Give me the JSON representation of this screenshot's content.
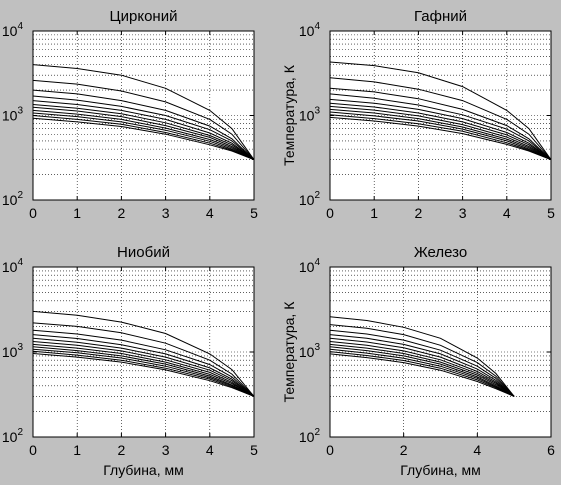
{
  "figure": {
    "background": "#c0c0c0",
    "axes_background": "#ffffff",
    "line_color": "#000000"
  },
  "chart_data": [
    {
      "type": "line",
      "title": "Цирконий",
      "xlabel": "",
      "ylabel": "",
      "xlim": [
        0,
        5
      ],
      "ylim": [
        100,
        10000
      ],
      "yscale": "log",
      "xticks": [
        "0",
        "1",
        "2",
        "3",
        "4",
        "5"
      ],
      "grid": "dotted",
      "series": [
        {
          "x": [
            0,
            1,
            2,
            3,
            4,
            4.5,
            5
          ],
          "y": [
            4000,
            3600,
            3000,
            2100,
            1150,
            700,
            300
          ]
        },
        {
          "x": [
            0,
            1,
            2,
            3,
            4,
            4.5,
            5
          ],
          "y": [
            2600,
            2350,
            1950,
            1450,
            900,
            600,
            300
          ]
        },
        {
          "x": [
            0,
            1,
            2,
            3,
            4,
            4.5,
            5
          ],
          "y": [
            2000,
            1800,
            1500,
            1150,
            750,
            530,
            300
          ]
        },
        {
          "x": [
            0,
            1,
            2,
            3,
            4,
            4.5,
            5
          ],
          "y": [
            1700,
            1520,
            1280,
            1000,
            680,
            500,
            300
          ]
        },
        {
          "x": [
            0,
            1,
            2,
            3,
            4,
            4.5,
            5
          ],
          "y": [
            1500,
            1350,
            1150,
            900,
            620,
            470,
            300
          ]
        },
        {
          "x": [
            0,
            1,
            2,
            3,
            4,
            4.5,
            5
          ],
          "y": [
            1350,
            1220,
            1050,
            820,
            580,
            450,
            300
          ]
        },
        {
          "x": [
            0,
            1,
            2,
            3,
            4,
            4.5,
            5
          ],
          "y": [
            1250,
            1130,
            970,
            760,
            550,
            430,
            300
          ]
        },
        {
          "x": [
            0,
            1,
            2,
            3,
            4,
            4.5,
            5
          ],
          "y": [
            1150,
            1040,
            900,
            710,
            520,
            415,
            300
          ]
        },
        {
          "x": [
            0,
            1,
            2,
            3,
            4,
            4.5,
            5
          ],
          "y": [
            1070,
            970,
            840,
            670,
            495,
            400,
            300
          ]
        },
        {
          "x": [
            0,
            1,
            2,
            3,
            4,
            4.5,
            5
          ],
          "y": [
            1000,
            900,
            790,
            630,
            470,
            390,
            300
          ]
        },
        {
          "x": [
            0,
            1,
            2,
            3,
            4,
            4.5,
            5
          ],
          "y": [
            930,
            840,
            740,
            600,
            450,
            380,
            300
          ]
        }
      ]
    },
    {
      "type": "line",
      "title": "Гафний",
      "xlabel": "",
      "ylabel": "Температура, К",
      "xlim": [
        0,
        5
      ],
      "ylim": [
        100,
        10000
      ],
      "yscale": "log",
      "xticks": [
        "0",
        "1",
        "2",
        "3",
        "4",
        "5"
      ],
      "grid": "dotted",
      "series": [
        {
          "x": [
            0,
            1,
            2,
            3,
            4,
            4.5,
            5
          ],
          "y": [
            4300,
            3900,
            3200,
            2200,
            1150,
            700,
            300
          ]
        },
        {
          "x": [
            0,
            1,
            2,
            3,
            4,
            4.5,
            5
          ],
          "y": [
            2800,
            2500,
            2050,
            1500,
            900,
            600,
            300
          ]
        },
        {
          "x": [
            0,
            1,
            2,
            3,
            4,
            4.5,
            5
          ],
          "y": [
            2100,
            1900,
            1580,
            1180,
            760,
            530,
            300
          ]
        },
        {
          "x": [
            0,
            1,
            2,
            3,
            4,
            4.5,
            5
          ],
          "y": [
            1800,
            1600,
            1330,
            1020,
            690,
            500,
            300
          ]
        },
        {
          "x": [
            0,
            1,
            2,
            3,
            4,
            4.5,
            5
          ],
          "y": [
            1550,
            1400,
            1180,
            920,
            630,
            470,
            300
          ]
        },
        {
          "x": [
            0,
            1,
            2,
            3,
            4,
            4.5,
            5
          ],
          "y": [
            1400,
            1260,
            1070,
            840,
            590,
            450,
            300
          ]
        },
        {
          "x": [
            0,
            1,
            2,
            3,
            4,
            4.5,
            5
          ],
          "y": [
            1280,
            1160,
            990,
            780,
            555,
            430,
            300
          ]
        },
        {
          "x": [
            0,
            1,
            2,
            3,
            4,
            4.5,
            5
          ],
          "y": [
            1180,
            1070,
            920,
            730,
            525,
            415,
            300
          ]
        },
        {
          "x": [
            0,
            1,
            2,
            3,
            4,
            4.5,
            5
          ],
          "y": [
            1100,
            990,
            860,
            690,
            500,
            400,
            300
          ]
        },
        {
          "x": [
            0,
            1,
            2,
            3,
            4,
            4.5,
            5
          ],
          "y": [
            1020,
            920,
            800,
            650,
            475,
            390,
            300
          ]
        },
        {
          "x": [
            0,
            1,
            2,
            3,
            4,
            4.5,
            5
          ],
          "y": [
            950,
            860,
            750,
            610,
            455,
            380,
            300
          ]
        }
      ]
    },
    {
      "type": "line",
      "title": "Ниобий",
      "xlabel": "Глубина, мм",
      "ylabel": "",
      "xlim": [
        0,
        5
      ],
      "ylim": [
        100,
        10000
      ],
      "yscale": "log",
      "xticks": [
        "0",
        "1",
        "2",
        "3",
        "4",
        "5"
      ],
      "grid": "dotted",
      "series": [
        {
          "x": [
            0,
            1,
            2,
            3,
            4,
            4.5,
            5
          ],
          "y": [
            3000,
            2700,
            2250,
            1650,
            950,
            620,
            300
          ]
        },
        {
          "x": [
            0,
            1,
            2,
            3,
            4,
            4.5,
            5
          ],
          "y": [
            2200,
            2000,
            1680,
            1270,
            800,
            550,
            300
          ]
        },
        {
          "x": [
            0,
            1,
            2,
            3,
            4,
            4.5,
            5
          ],
          "y": [
            1800,
            1630,
            1380,
            1060,
            710,
            510,
            300
          ]
        },
        {
          "x": [
            0,
            1,
            2,
            3,
            4,
            4.5,
            5
          ],
          "y": [
            1600,
            1440,
            1220,
            950,
            650,
            480,
            300
          ]
        },
        {
          "x": [
            0,
            1,
            2,
            3,
            4,
            4.5,
            5
          ],
          "y": [
            1450,
            1300,
            1110,
            870,
            610,
            460,
            300
          ]
        },
        {
          "x": [
            0,
            1,
            2,
            3,
            4,
            4.5,
            5
          ],
          "y": [
            1330,
            1200,
            1030,
            810,
            575,
            440,
            300
          ]
        },
        {
          "x": [
            0,
            1,
            2,
            3,
            4,
            4.5,
            5
          ],
          "y": [
            1230,
            1110,
            960,
            760,
            545,
            425,
            300
          ]
        },
        {
          "x": [
            0,
            1,
            2,
            3,
            4,
            4.5,
            5
          ],
          "y": [
            1150,
            1040,
            900,
            720,
            520,
            410,
            300
          ]
        },
        {
          "x": [
            0,
            1,
            2,
            3,
            4,
            4.5,
            5
          ],
          "y": [
            1080,
            980,
            850,
            680,
            500,
            400,
            300
          ]
        },
        {
          "x": [
            0,
            1,
            2,
            3,
            4,
            4.5,
            5
          ],
          "y": [
            1020,
            920,
            800,
            645,
            480,
            390,
            300
          ]
        },
        {
          "x": [
            0,
            1,
            2,
            3,
            4,
            4.5,
            5
          ],
          "y": [
            960,
            870,
            760,
            615,
            460,
            380,
            300
          ]
        }
      ]
    },
    {
      "type": "line",
      "title": "Железо",
      "xlabel": "Глубина, мм",
      "ylabel": "Температура, К",
      "xlim": [
        0,
        6
      ],
      "ylim": [
        100,
        10000
      ],
      "yscale": "log",
      "xticks": [
        "0",
        "2",
        "4",
        "6"
      ],
      "grid": "dotted",
      "series": [
        {
          "x": [
            0,
            1,
            2,
            3,
            4,
            4.5,
            5
          ],
          "y": [
            2600,
            2350,
            1950,
            1450,
            850,
            560,
            300
          ]
        },
        {
          "x": [
            0,
            1,
            2,
            3,
            4,
            4.5,
            5
          ],
          "y": [
            2100,
            1900,
            1600,
            1200,
            750,
            520,
            300
          ]
        },
        {
          "x": [
            0,
            1,
            2,
            3,
            4,
            4.5,
            5
          ],
          "y": [
            1800,
            1630,
            1380,
            1050,
            680,
            490,
            300
          ]
        },
        {
          "x": [
            0,
            1,
            2,
            3,
            4,
            4.5,
            5
          ],
          "y": [
            1600,
            1450,
            1230,
            950,
            630,
            465,
            300
          ]
        },
        {
          "x": [
            0,
            1,
            2,
            3,
            4,
            4.5,
            5
          ],
          "y": [
            1450,
            1310,
            1120,
            870,
            590,
            445,
            300
          ]
        },
        {
          "x": [
            0,
            1,
            2,
            3,
            4,
            4.5,
            5
          ],
          "y": [
            1330,
            1200,
            1030,
            810,
            560,
            430,
            300
          ]
        },
        {
          "x": [
            0,
            1,
            2,
            3,
            4,
            4.5,
            5
          ],
          "y": [
            1230,
            1110,
            960,
            760,
            535,
            415,
            300
          ]
        },
        {
          "x": [
            0,
            1,
            2,
            3,
            4,
            4.5,
            5
          ],
          "y": [
            1150,
            1040,
            900,
            720,
            510,
            400,
            300
          ]
        },
        {
          "x": [
            0,
            1,
            2,
            3,
            4,
            4.5,
            5
          ],
          "y": [
            1080,
            970,
            845,
            680,
            490,
            390,
            300
          ]
        },
        {
          "x": [
            0,
            1,
            2,
            3,
            4,
            4.5,
            5
          ],
          "y": [
            1010,
            910,
            795,
            645,
            470,
            380,
            300
          ]
        },
        {
          "x": [
            0,
            1,
            2,
            3,
            4,
            4.5,
            5
          ],
          "y": [
            950,
            860,
            750,
            610,
            450,
            370,
            300
          ]
        }
      ]
    }
  ]
}
